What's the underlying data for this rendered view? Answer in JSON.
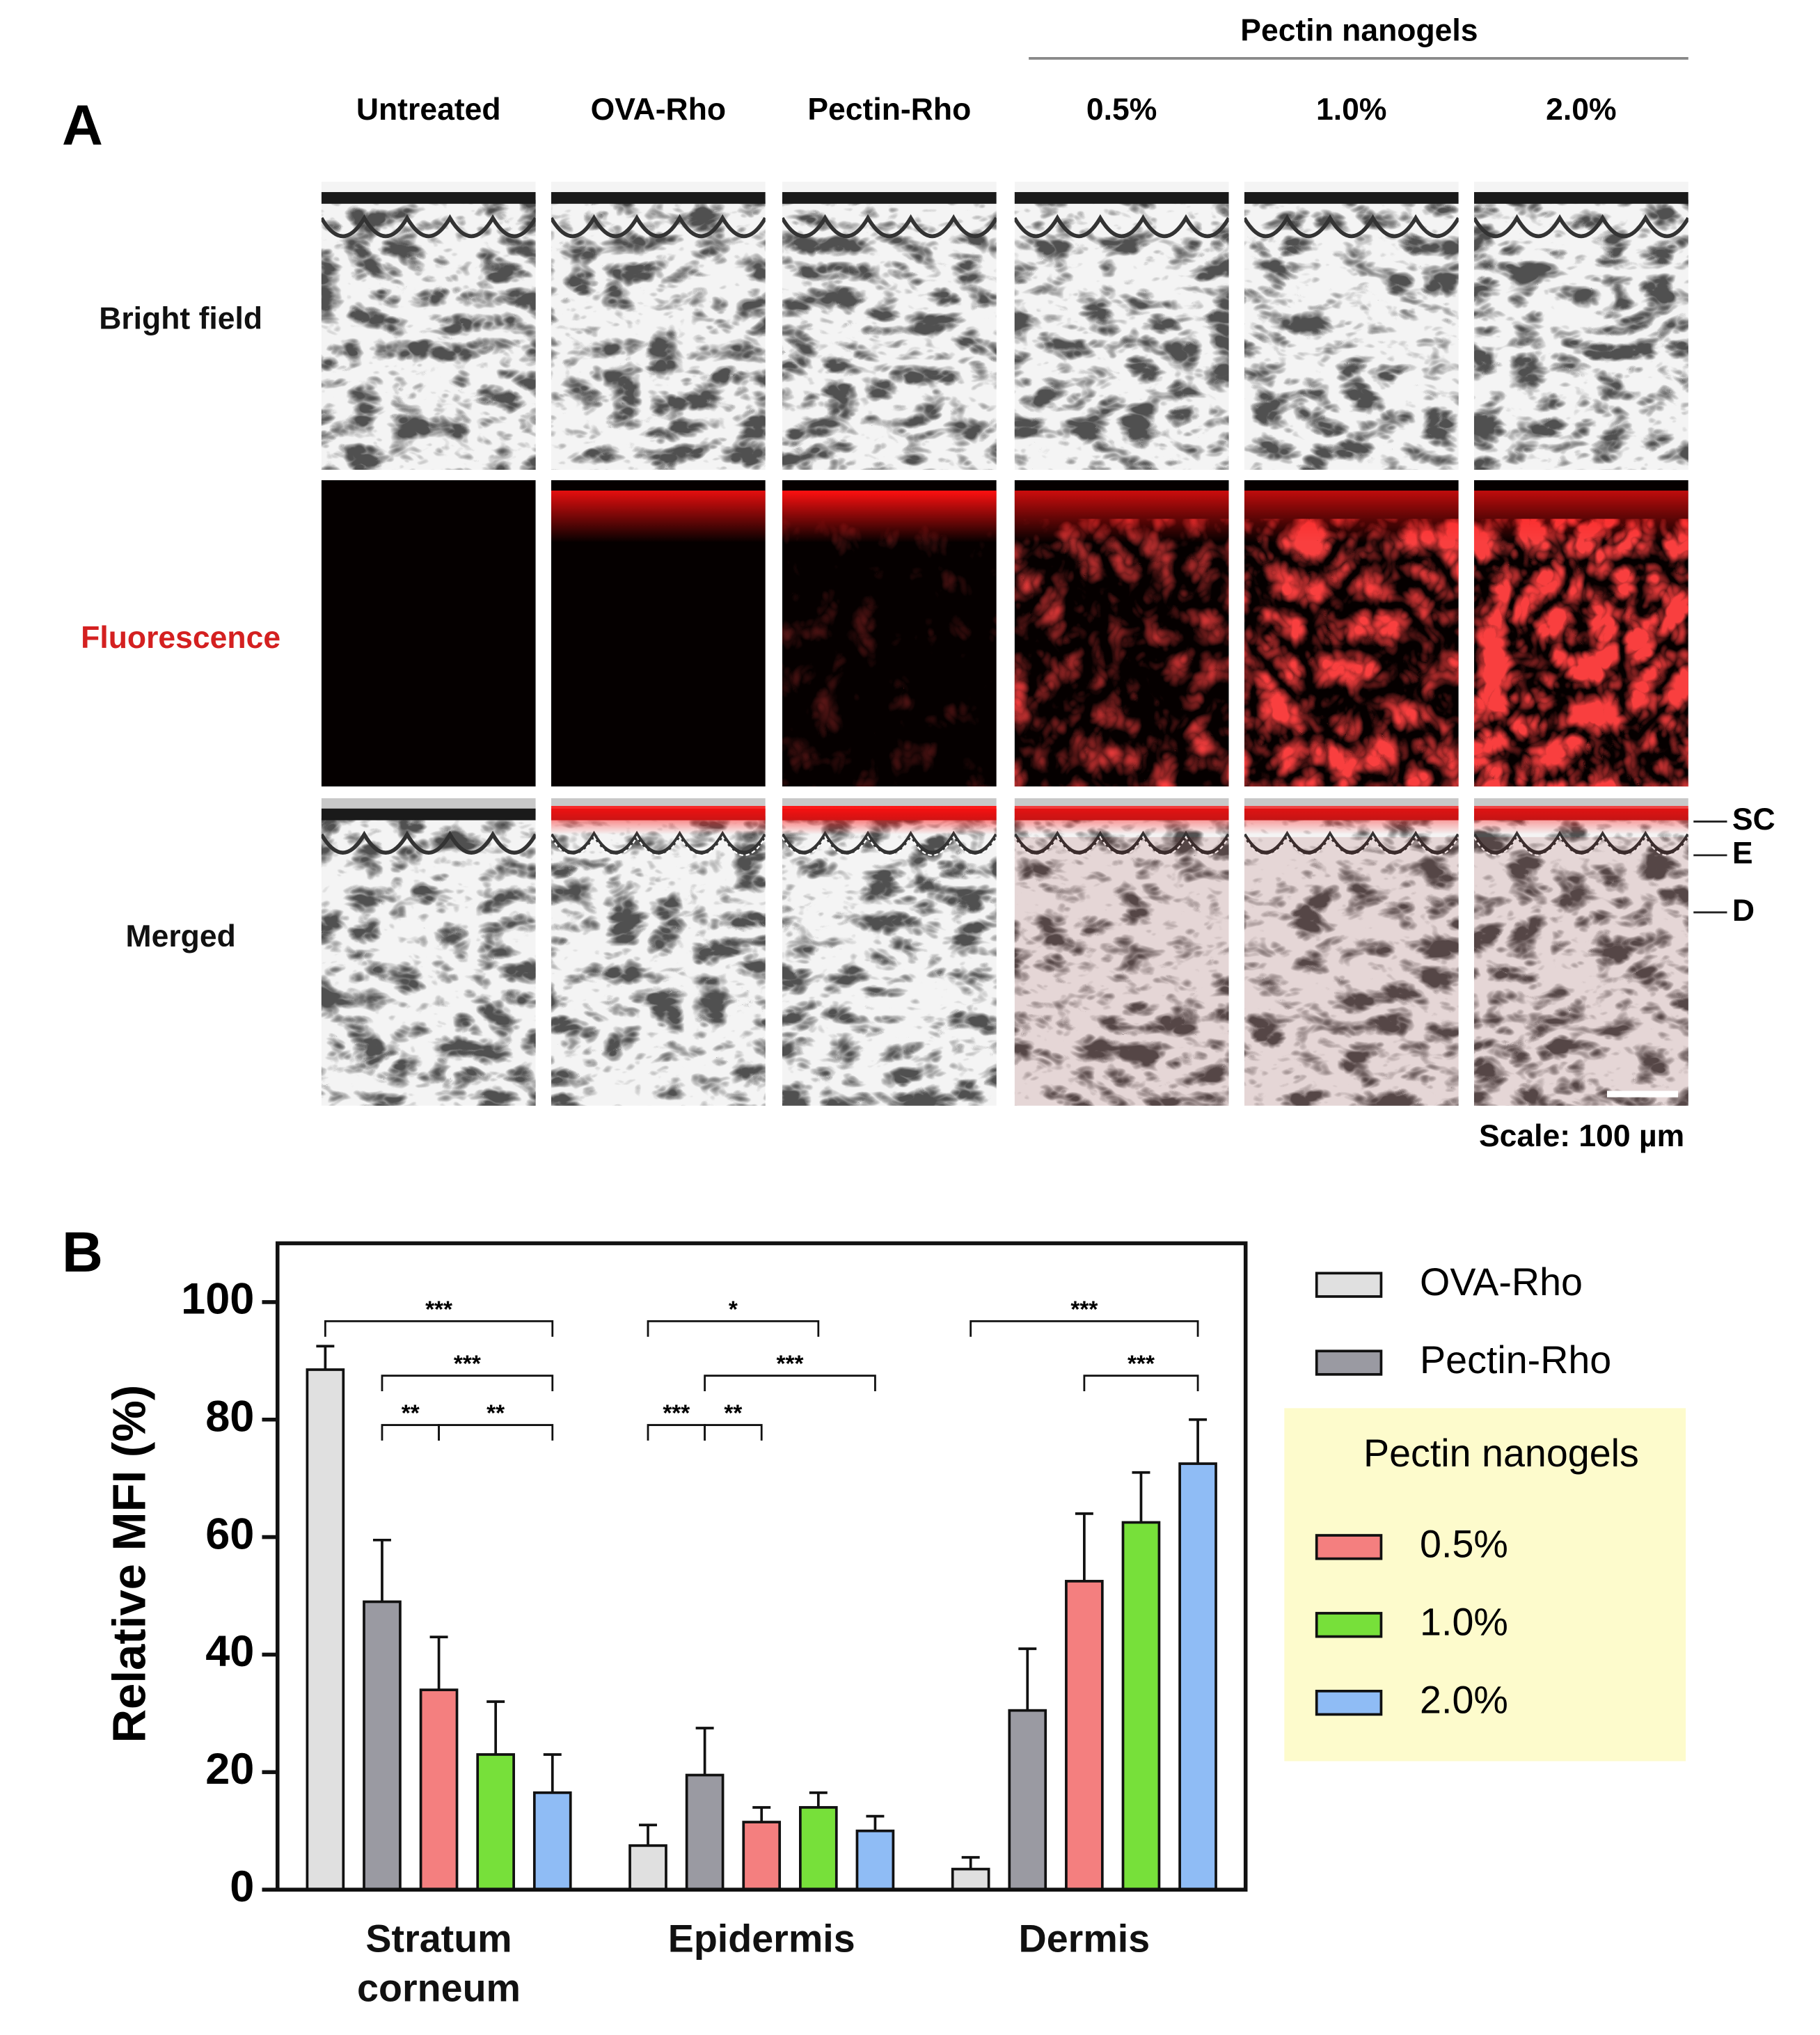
{
  "panel_a": {
    "label": "A",
    "group_title": "Pectin nanogels",
    "columns": [
      "Untreated",
      "OVA-Rho",
      "Pectin-Rho",
      "0.5%",
      "1.0%",
      "2.0%"
    ],
    "rows": [
      "Bright field",
      "Fluorescence",
      "Merged"
    ],
    "layers": [
      "SC",
      "E",
      "D"
    ],
    "scale": "Scale: 100 µm"
  },
  "chart_data": {
    "type": "bar",
    "panel_label": "B",
    "y_label": "Relative MFI (%)",
    "categories": [
      "Stratum corneum",
      "Epidermis",
      "Dermis"
    ],
    "series": [
      {
        "name": "OVA-Rho",
        "color": "#e0e0e0",
        "values": [
          88.5,
          7.5,
          3.5
        ],
        "errors": [
          4,
          3.5,
          2
        ]
      },
      {
        "name": "Pectin-Rho",
        "color": "#9a9aa2",
        "values": [
          49,
          19.5,
          30.5
        ],
        "errors": [
          10.5,
          8,
          10.5
        ]
      },
      {
        "name": "0.5%",
        "color": "#f47f7f",
        "values": [
          34,
          11.5,
          52.5
        ],
        "errors": [
          9,
          2.5,
          11.5
        ]
      },
      {
        "name": "1.0%",
        "color": "#77e03a",
        "values": [
          23,
          14,
          62.5
        ],
        "errors": [
          9,
          2.5,
          8.5
        ]
      },
      {
        "name": "2.0%",
        "color": "#8fbcf5",
        "values": [
          16.5,
          10,
          72.5
        ],
        "errors": [
          6.5,
          2.5,
          7.5
        ]
      }
    ],
    "legend_group_title": "Pectin nanogels",
    "ylim": [
      0,
      110
    ],
    "yticks": [
      0,
      20,
      40,
      60,
      80,
      100
    ],
    "significance": [
      {
        "label": "***",
        "from": [
          0,
          0
        ],
        "to": [
          0,
          4
        ]
      },
      {
        "label": "***",
        "from": [
          0,
          1
        ],
        "to": [
          0,
          4
        ]
      },
      {
        "label": "**",
        "from": [
          0,
          1
        ],
        "to": [
          0,
          2
        ]
      },
      {
        "label": "**",
        "from": [
          0,
          2
        ],
        "to": [
          0,
          4
        ]
      },
      {
        "label": "*",
        "from": [
          1,
          0
        ],
        "to": [
          1,
          3
        ]
      },
      {
        "label": "***",
        "from": [
          1,
          1
        ],
        "to": [
          1,
          4
        ]
      },
      {
        "label": "***",
        "from": [
          1,
          0
        ],
        "to": [
          1,
          1
        ]
      },
      {
        "label": "**",
        "from": [
          1,
          1
        ],
        "to": [
          1,
          2
        ]
      },
      {
        "label": "***",
        "from": [
          2,
          0
        ],
        "to": [
          2,
          4
        ]
      },
      {
        "label": "***",
        "from": [
          2,
          2
        ],
        "to": [
          2,
          4
        ]
      }
    ]
  }
}
